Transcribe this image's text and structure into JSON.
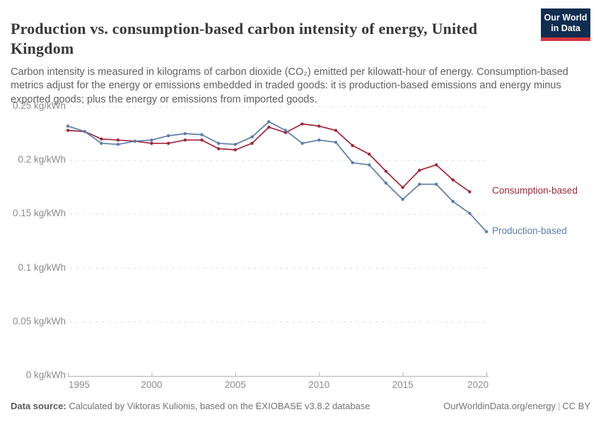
{
  "header": {
    "title": "Production vs. consumption-based carbon intensity of energy, United Kingdom",
    "logo": {
      "line1": "Our World",
      "line2": "in Data",
      "bg_color": "#102d4f",
      "bar_color": "#d7353d"
    }
  },
  "subtitle": "Carbon intensity is measured in kilograms of carbon dioxide (CO₂) emitted per kilowatt-hour of energy. Consumption-based metrics adjust for the energy or emissions embedded in traded goods: it is production-based emissions and energy minus exported goods; plus the energy or emissions from imported goods.",
  "chart_data": {
    "type": "line",
    "title": "Production vs. consumption-based carbon intensity of energy, United Kingdom",
    "unit": "kg/kWh",
    "x": [
      1995,
      1996,
      1997,
      1998,
      1999,
      2000,
      2001,
      2002,
      2003,
      2004,
      2005,
      2006,
      2007,
      2008,
      2009,
      2010,
      2011,
      2012,
      2013,
      2014,
      2015,
      2016,
      2017,
      2018,
      2019,
      2020
    ],
    "series": [
      {
        "name": "Consumption-based",
        "color": "#a12639",
        "values": [
          0.228,
          0.227,
          0.22,
          0.219,
          0.218,
          0.216,
          0.216,
          0.219,
          0.219,
          0.211,
          0.21,
          0.216,
          0.231,
          0.226,
          0.234,
          0.232,
          0.228,
          0.214,
          0.206,
          0.19,
          0.175,
          0.191,
          0.196,
          0.182,
          0.171,
          null
        ]
      },
      {
        "name": "Production-based",
        "color": "#5d7ca8",
        "values": [
          0.232,
          0.227,
          0.216,
          0.215,
          0.218,
          0.219,
          0.223,
          0.225,
          0.224,
          0.216,
          0.215,
          0.222,
          0.236,
          0.228,
          0.216,
          0.219,
          0.217,
          0.198,
          0.196,
          0.179,
          0.164,
          0.178,
          0.178,
          0.162,
          0.151,
          0.134
        ]
      }
    ],
    "x_ticks": [
      1995,
      2000,
      2005,
      2010,
      2015,
      2020
    ],
    "y_ticks": [
      0,
      0.05,
      0.1,
      0.15,
      0.2,
      0.25
    ],
    "y_tick_label_suffix": " kg/kWh",
    "xlim": [
      1995,
      2020
    ],
    "ylim": [
      0,
      0.25
    ],
    "grid": true,
    "legend_position": "right-of-line-ends"
  },
  "footer": {
    "source_label": "Data source:",
    "source_text": "Calculated by Viktoras Kulionis, based on the EXIOBASE v3.8.2 database",
    "link": "OurWorldinData.org/energy",
    "separator": "|",
    "license": "CC BY"
  }
}
